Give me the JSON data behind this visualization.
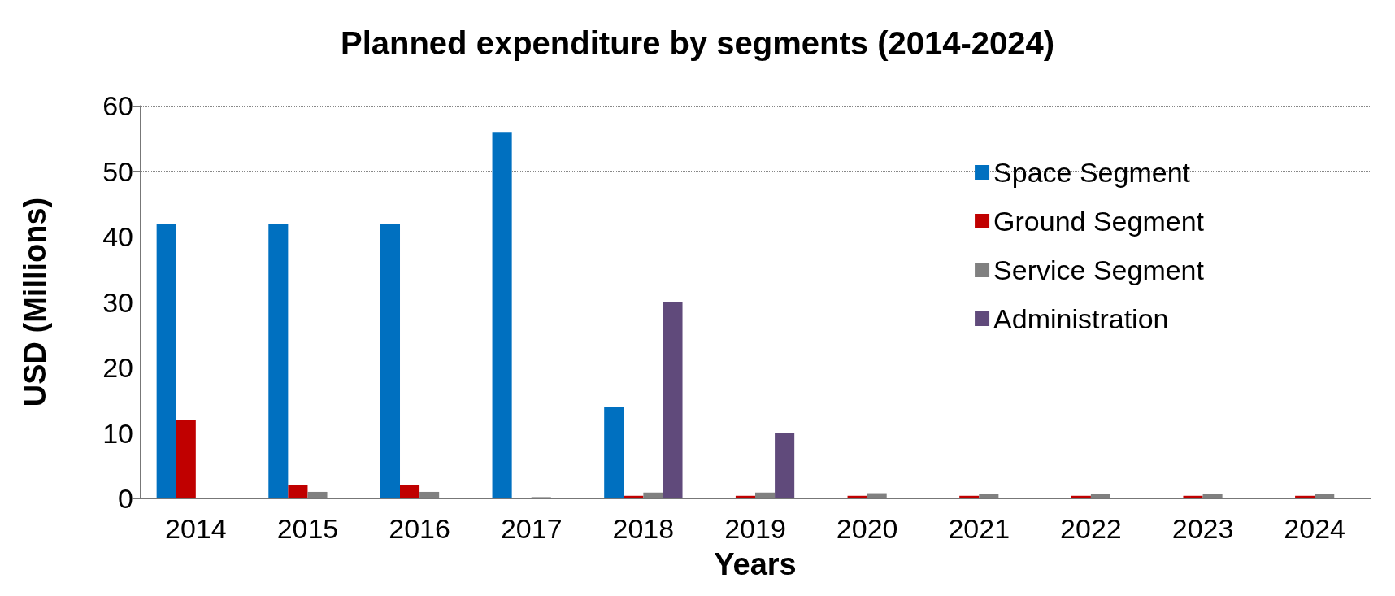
{
  "chart_data": {
    "type": "bar",
    "title": "Planned expenditure by segments (2014-2024)",
    "xlabel": "Years",
    "ylabel": "USD (Millions)",
    "categories": [
      "2014",
      "2015",
      "2016",
      "2017",
      "2018",
      "2019",
      "2020",
      "2021",
      "2022",
      "2023",
      "2024"
    ],
    "series": [
      {
        "name": "Space Segment",
        "color": "#0070c0",
        "values": [
          42,
          42,
          42,
          56,
          14,
          0,
          0,
          0,
          0,
          0,
          0
        ]
      },
      {
        "name": "Ground Segment",
        "color": "#c00000",
        "values": [
          12,
          2.1,
          2.1,
          0,
          0.4,
          0.4,
          0.4,
          0.4,
          0.4,
          0.4,
          0.4
        ]
      },
      {
        "name": "Service Segment",
        "color": "#808080",
        "values": [
          0,
          1,
          1,
          0.2,
          0.9,
          0.9,
          0.8,
          0.7,
          0.7,
          0.7,
          0.7
        ]
      },
      {
        "name": "Administration",
        "color": "#604a7b",
        "values": [
          null,
          null,
          null,
          null,
          30,
          10,
          0,
          0,
          0,
          0,
          0
        ]
      }
    ],
    "ylim": [
      0,
      60
    ],
    "yticks": [
      0,
      10,
      20,
      30,
      40,
      50,
      60
    ],
    "grid": "y",
    "legend": "top right"
  }
}
